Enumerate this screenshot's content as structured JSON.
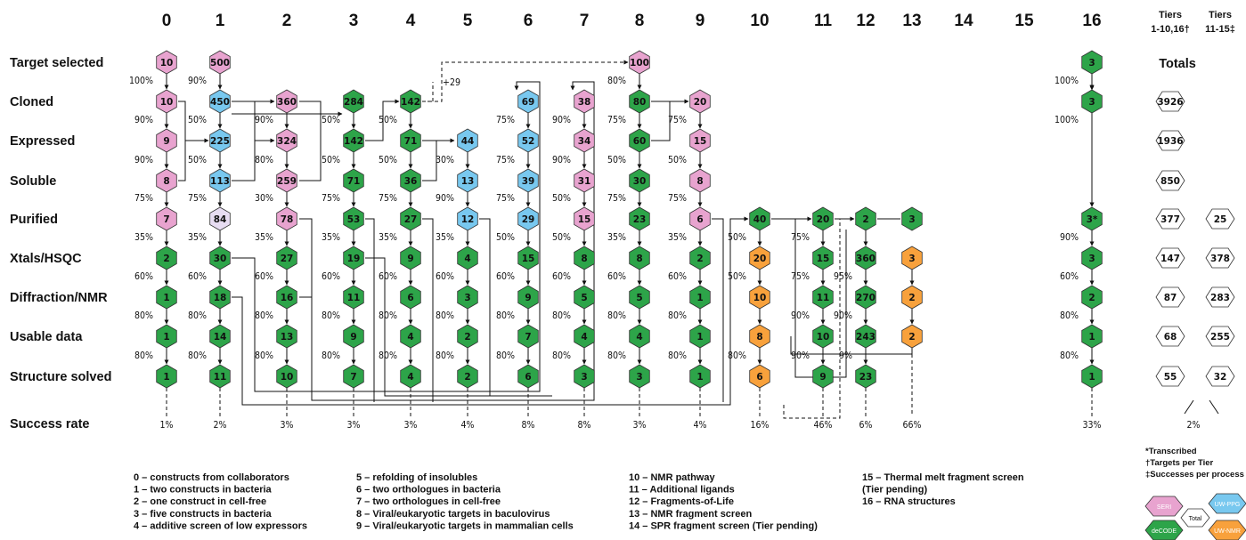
{
  "headers": [
    "0",
    "1",
    "2",
    "3",
    "4",
    "5",
    "6",
    "7",
    "8",
    "9",
    "10",
    "11",
    "12",
    "13",
    "14",
    "15",
    "16"
  ],
  "tier_headers": [
    {
      "line1": "Tiers",
      "line2": "1-10,16†"
    },
    {
      "line1": "Tiers",
      "line2": "11-15‡"
    }
  ],
  "rows": [
    "Target selected",
    "Cloned",
    "Expressed",
    "Soluble",
    "Purified",
    "Xtals/HSQC",
    "Diffraction/NMR",
    "Usable data",
    "Structure solved"
  ],
  "success_label": "Success rate",
  "colors": {
    "pink": "#e8a3cf",
    "blue": "#78c8ef",
    "green": "#2da449",
    "orange": "#f8a13c",
    "lavender": "#e7dcf2",
    "white": "#ffffff"
  },
  "columns": [
    {
      "nodes": [
        {
          "r": 0,
          "v": "10",
          "c": "pink"
        },
        {
          "r": 1,
          "v": "10",
          "c": "pink"
        },
        {
          "r": 2,
          "v": "9",
          "c": "pink"
        },
        {
          "r": 3,
          "v": "8",
          "c": "pink"
        },
        {
          "r": 4,
          "v": "7",
          "c": "pink"
        },
        {
          "r": 5,
          "v": "2",
          "c": "green"
        },
        {
          "r": 6,
          "v": "1",
          "c": "green"
        },
        {
          "r": 7,
          "v": "1",
          "c": "green"
        },
        {
          "r": 8,
          "v": "1",
          "c": "green"
        }
      ],
      "pcts": [
        {
          "r": 1,
          "t": "100%"
        },
        {
          "r": 2,
          "t": "90%"
        },
        {
          "r": 3,
          "t": "90%"
        },
        {
          "r": 4,
          "t": "75%"
        },
        {
          "r": 5,
          "t": "35%"
        },
        {
          "r": 6,
          "t": "60%"
        },
        {
          "r": 7,
          "t": "80%"
        },
        {
          "r": 8,
          "t": "80%"
        }
      ],
      "success": "1%"
    },
    {
      "nodes": [
        {
          "r": 0,
          "v": "500",
          "c": "pink"
        },
        {
          "r": 1,
          "v": "450",
          "c": "blue"
        },
        {
          "r": 2,
          "v": "225",
          "c": "blue"
        },
        {
          "r": 3,
          "v": "113",
          "c": "blue"
        },
        {
          "r": 4,
          "v": "84",
          "c": "lavender"
        },
        {
          "r": 5,
          "v": "30",
          "c": "green"
        },
        {
          "r": 6,
          "v": "18",
          "c": "green"
        },
        {
          "r": 7,
          "v": "14",
          "c": "green"
        },
        {
          "r": 8,
          "v": "11",
          "c": "green"
        }
      ],
      "pcts": [
        {
          "r": 1,
          "t": "90%"
        },
        {
          "r": 2,
          "t": "50%"
        },
        {
          "r": 3,
          "t": "50%"
        },
        {
          "r": 4,
          "t": "75%"
        },
        {
          "r": 5,
          "t": "35%"
        },
        {
          "r": 6,
          "t": "60%"
        },
        {
          "r": 7,
          "t": "80%"
        },
        {
          "r": 8,
          "t": "80%"
        }
      ],
      "success": "2%"
    },
    {
      "nodes": [
        {
          "r": 1,
          "v": "360",
          "c": "pink"
        },
        {
          "r": 2,
          "v": "324",
          "c": "pink"
        },
        {
          "r": 3,
          "v": "259",
          "c": "pink"
        },
        {
          "r": 4,
          "v": "78",
          "c": "pink"
        },
        {
          "r": 5,
          "v": "27",
          "c": "green"
        },
        {
          "r": 6,
          "v": "16",
          "c": "green"
        },
        {
          "r": 7,
          "v": "13",
          "c": "green"
        },
        {
          "r": 8,
          "v": "10",
          "c": "green"
        }
      ],
      "pcts": [
        {
          "r": 2,
          "t": "90%"
        },
        {
          "r": 3,
          "t": "80%"
        },
        {
          "r": 4,
          "t": "30%"
        },
        {
          "r": 5,
          "t": "35%"
        },
        {
          "r": 6,
          "t": "60%"
        },
        {
          "r": 7,
          "t": "80%"
        },
        {
          "r": 8,
          "t": "80%"
        }
      ],
      "success": "3%"
    },
    {
      "nodes": [
        {
          "r": 1,
          "v": "284",
          "c": "green"
        },
        {
          "r": 2,
          "v": "142",
          "c": "green"
        },
        {
          "r": 3,
          "v": "71",
          "c": "green"
        },
        {
          "r": 4,
          "v": "53",
          "c": "green"
        },
        {
          "r": 5,
          "v": "19",
          "c": "green"
        },
        {
          "r": 6,
          "v": "11",
          "c": "green"
        },
        {
          "r": 7,
          "v": "9",
          "c": "green"
        },
        {
          "r": 8,
          "v": "7",
          "c": "green"
        }
      ],
      "pcts": [
        {
          "r": 2,
          "t": "50%"
        },
        {
          "r": 3,
          "t": "50%"
        },
        {
          "r": 4,
          "t": "75%"
        },
        {
          "r": 5,
          "t": "35%"
        },
        {
          "r": 6,
          "t": "60%"
        },
        {
          "r": 7,
          "t": "80%"
        },
        {
          "r": 8,
          "t": "80%"
        }
      ],
      "success": "3%"
    },
    {
      "nodes": [
        {
          "r": 1,
          "v": "142",
          "c": "green"
        },
        {
          "r": 2,
          "v": "71",
          "c": "green"
        },
        {
          "r": 3,
          "v": "36",
          "c": "green"
        },
        {
          "r": 4,
          "v": "27",
          "c": "green"
        },
        {
          "r": 5,
          "v": "9",
          "c": "green"
        },
        {
          "r": 6,
          "v": "6",
          "c": "green"
        },
        {
          "r": 7,
          "v": "4",
          "c": "green"
        },
        {
          "r": 8,
          "v": "4",
          "c": "green"
        }
      ],
      "pcts": [
        {
          "r": 2,
          "t": "50%"
        },
        {
          "r": 3,
          "t": "50%"
        },
        {
          "r": 4,
          "t": "75%"
        },
        {
          "r": 5,
          "t": "35%"
        },
        {
          "r": 6,
          "t": "60%"
        },
        {
          "r": 7,
          "t": "80%"
        },
        {
          "r": 8,
          "t": "80%"
        }
      ],
      "success": "3%"
    },
    {
      "nodes": [
        {
          "r": 2,
          "v": "44",
          "c": "blue"
        },
        {
          "r": 3,
          "v": "13",
          "c": "blue"
        },
        {
          "r": 4,
          "v": "12",
          "c": "blue"
        },
        {
          "r": 5,
          "v": "4",
          "c": "green"
        },
        {
          "r": 6,
          "v": "3",
          "c": "green"
        },
        {
          "r": 7,
          "v": "2",
          "c": "green"
        },
        {
          "r": 8,
          "v": "2",
          "c": "green"
        }
      ],
      "pcts": [
        {
          "r": 3,
          "t": "30%"
        },
        {
          "r": 4,
          "t": "90%"
        },
        {
          "r": 5,
          "t": "35%"
        },
        {
          "r": 6,
          "t": "60%"
        },
        {
          "r": 7,
          "t": "80%"
        },
        {
          "r": 8,
          "t": "80%"
        }
      ],
      "success": "4%"
    },
    {
      "nodes": [
        {
          "r": 1,
          "v": "69",
          "c": "blue"
        },
        {
          "r": 2,
          "v": "52",
          "c": "blue"
        },
        {
          "r": 3,
          "v": "39",
          "c": "blue"
        },
        {
          "r": 4,
          "v": "29",
          "c": "blue"
        },
        {
          "r": 5,
          "v": "15",
          "c": "green"
        },
        {
          "r": 6,
          "v": "9",
          "c": "green"
        },
        {
          "r": 7,
          "v": "7",
          "c": "green"
        },
        {
          "r": 8,
          "v": "6",
          "c": "green"
        }
      ],
      "pcts": [
        {
          "r": 2,
          "t": "75%"
        },
        {
          "r": 3,
          "t": "75%"
        },
        {
          "r": 4,
          "t": "75%"
        },
        {
          "r": 5,
          "t": "50%"
        },
        {
          "r": 6,
          "t": "60%"
        },
        {
          "r": 7,
          "t": "80%"
        },
        {
          "r": 8,
          "t": "80%"
        }
      ],
      "success": "8%"
    },
    {
      "nodes": [
        {
          "r": 1,
          "v": "38",
          "c": "pink"
        },
        {
          "r": 2,
          "v": "34",
          "c": "pink"
        },
        {
          "r": 3,
          "v": "31",
          "c": "pink"
        },
        {
          "r": 4,
          "v": "15",
          "c": "pink"
        },
        {
          "r": 5,
          "v": "8",
          "c": "green"
        },
        {
          "r": 6,
          "v": "5",
          "c": "green"
        },
        {
          "r": 7,
          "v": "4",
          "c": "green"
        },
        {
          "r": 8,
          "v": "3",
          "c": "green"
        }
      ],
      "pcts": [
        {
          "r": 2,
          "t": "90%"
        },
        {
          "r": 3,
          "t": "90%"
        },
        {
          "r": 4,
          "t": "50%"
        },
        {
          "r": 5,
          "t": "50%"
        },
        {
          "r": 6,
          "t": "60%"
        },
        {
          "r": 7,
          "t": "80%"
        },
        {
          "r": 8,
          "t": "80%"
        }
      ],
      "success": "8%"
    },
    {
      "nodes": [
        {
          "r": 0,
          "v": "100",
          "c": "pink"
        },
        {
          "r": 1,
          "v": "80",
          "c": "green"
        },
        {
          "r": 2,
          "v": "60",
          "c": "green"
        },
        {
          "r": 3,
          "v": "30",
          "c": "green"
        },
        {
          "r": 4,
          "v": "23",
          "c": "green"
        },
        {
          "r": 5,
          "v": "8",
          "c": "green"
        },
        {
          "r": 6,
          "v": "5",
          "c": "green"
        },
        {
          "r": 7,
          "v": "4",
          "c": "green"
        },
        {
          "r": 8,
          "v": "3",
          "c": "green"
        }
      ],
      "pcts": [
        {
          "r": 1,
          "t": "80%"
        },
        {
          "r": 2,
          "t": "75%"
        },
        {
          "r": 3,
          "t": "50%"
        },
        {
          "r": 4,
          "t": "75%"
        },
        {
          "r": 5,
          "t": "35%"
        },
        {
          "r": 6,
          "t": "60%"
        },
        {
          "r": 7,
          "t": "80%"
        },
        {
          "r": 8,
          "t": "80%"
        }
      ],
      "success": "3%"
    },
    {
      "nodes": [
        {
          "r": 1,
          "v": "20",
          "c": "pink"
        },
        {
          "r": 2,
          "v": "15",
          "c": "pink"
        },
        {
          "r": 3,
          "v": "8",
          "c": "pink"
        },
        {
          "r": 4,
          "v": "6",
          "c": "pink"
        },
        {
          "r": 5,
          "v": "2",
          "c": "green"
        },
        {
          "r": 6,
          "v": "1",
          "c": "green"
        },
        {
          "r": 7,
          "v": "1",
          "c": "green"
        },
        {
          "r": 8,
          "v": "1",
          "c": "green"
        }
      ],
      "pcts": [
        {
          "r": 2,
          "t": "75%"
        },
        {
          "r": 3,
          "t": "50%"
        },
        {
          "r": 4,
          "t": "75%"
        },
        {
          "r": 5,
          "t": "35%"
        },
        {
          "r": 6,
          "t": "60%"
        },
        {
          "r": 7,
          "t": "80%"
        },
        {
          "r": 8,
          "t": "80%"
        }
      ],
      "success": "4%"
    },
    {
      "nodes": [
        {
          "r": 4,
          "v": "40",
          "c": "green"
        },
        {
          "r": 5,
          "v": "20",
          "c": "orange"
        },
        {
          "r": 6,
          "v": "10",
          "c": "orange"
        },
        {
          "r": 7,
          "v": "8",
          "c": "orange"
        },
        {
          "r": 8,
          "v": "6",
          "c": "orange"
        }
      ],
      "pcts": [
        {
          "r": 5,
          "t": "50%"
        },
        {
          "r": 6,
          "t": "50%"
        },
        {
          "r": 8,
          "t": "80%"
        }
      ],
      "success": "16%"
    },
    {
      "nodes": [
        {
          "r": 4,
          "v": "20",
          "c": "green"
        },
        {
          "r": 5,
          "v": "15",
          "c": "green"
        },
        {
          "r": 6,
          "v": "11",
          "c": "green"
        },
        {
          "r": 7,
          "v": "10",
          "c": "green"
        },
        {
          "r": 8,
          "v": "9",
          "c": "green"
        }
      ],
      "pcts": [
        {
          "r": 5,
          "t": "75%"
        },
        {
          "r": 6,
          "t": "75%"
        },
        {
          "r": 7,
          "t": "90%"
        },
        {
          "r": 8,
          "t": "90%"
        }
      ],
      "success": "46%"
    },
    {
      "nodes": [
        {
          "r": 4,
          "v": "2",
          "c": "green"
        },
        {
          "r": 5,
          "v": "360",
          "c": "green"
        },
        {
          "r": 6,
          "v": "270",
          "c": "green"
        },
        {
          "r": 7,
          "v": "243",
          "c": "green"
        },
        {
          "r": 8,
          "v": "23",
          "c": "green"
        }
      ],
      "pcts": [
        {
          "r": 6,
          "t": "95%"
        },
        {
          "r": 7,
          "t": "90%"
        },
        {
          "r": 8,
          "t": "9%"
        }
      ],
      "success": "6%"
    },
    {
      "nodes": [
        {
          "r": 4,
          "v": "3",
          "c": "green"
        },
        {
          "r": 5,
          "v": "3",
          "c": "orange"
        },
        {
          "r": 6,
          "v": "2",
          "c": "orange"
        },
        {
          "r": 7,
          "v": "2",
          "c": "orange"
        }
      ],
      "pcts": [],
      "success": "66%"
    },
    {
      "nodes": [],
      "pcts": [],
      "success": ""
    },
    {
      "nodes": [],
      "pcts": [],
      "success": ""
    },
    {
      "nodes": [
        {
          "r": 0,
          "v": "3",
          "c": "green"
        },
        {
          "r": 1,
          "v": "3",
          "c": "green"
        },
        {
          "r": 4,
          "v": "3*",
          "c": "green"
        },
        {
          "r": 5,
          "v": "3",
          "c": "green"
        },
        {
          "r": 6,
          "v": "2",
          "c": "green"
        },
        {
          "r": 7,
          "v": "1",
          "c": "green"
        },
        {
          "r": 8,
          "v": "1",
          "c": "green"
        }
      ],
      "pcts": [
        {
          "r": 1,
          "t": "100%"
        },
        {
          "r": 2,
          "t": "100%"
        },
        {
          "r": 5,
          "t": "90%"
        },
        {
          "r": 6,
          "t": "60%"
        },
        {
          "r": 7,
          "t": "80%"
        },
        {
          "r": 8,
          "t": "80%"
        }
      ],
      "success": "33%"
    }
  ],
  "plus_note": "+29",
  "totals_label": "Totals",
  "totals_a": [
    {
      "r": 1,
      "v": "3926"
    },
    {
      "r": 2,
      "v": "1936"
    },
    {
      "r": 3,
      "v": "850"
    },
    {
      "r": 4,
      "v": "377"
    },
    {
      "r": 5,
      "v": "147"
    },
    {
      "r": 6,
      "v": "87"
    },
    {
      "r": 7,
      "v": "68"
    },
    {
      "r": 8,
      "v": "55"
    }
  ],
  "totals_b": [
    {
      "r": 4,
      "v": "25"
    },
    {
      "r": 5,
      "v": "378"
    },
    {
      "r": 6,
      "v": "283"
    },
    {
      "r": 7,
      "v": "255"
    },
    {
      "r": 8,
      "v": "32"
    }
  ],
  "success_a": "",
  "success_b": "2%",
  "legend_columns": [
    [
      "0 – constructs from collaborators",
      "1 – two constructs in bacteria",
      "2 – one construct in cell-free",
      "3 – five constructs in bacteria",
      "4 – additive screen of low expressors"
    ],
    [
      "5 – refolding of insolubles",
      "6 – two orthologues in bacteria",
      " 7 – two orthologues in cell-free",
      " 8 – Viral/eukaryotic targets in baculovirus",
      " 9 – Viral/eukaryotic targets in mammalian cells"
    ],
    [
      "10 – NMR pathway",
      "11 – Additional ligands",
      "12 – Fragments-of-Life",
      "13 – NMR fragment screen",
      "14 – SPR fragment screen (Tier pending)"
    ],
    [
      "15 – Thermal melt fragment screen",
      "       (Tier pending)",
      "16 – RNA structures"
    ]
  ],
  "footnotes": [
    "*Transcribed",
    "†Targets per Tier",
    "‡Successes per process"
  ],
  "key": {
    "tl": "SERI",
    "tr": "UW-PPG",
    "center": "Total",
    "bl": "deCODE",
    "br": "UW-NMR"
  }
}
